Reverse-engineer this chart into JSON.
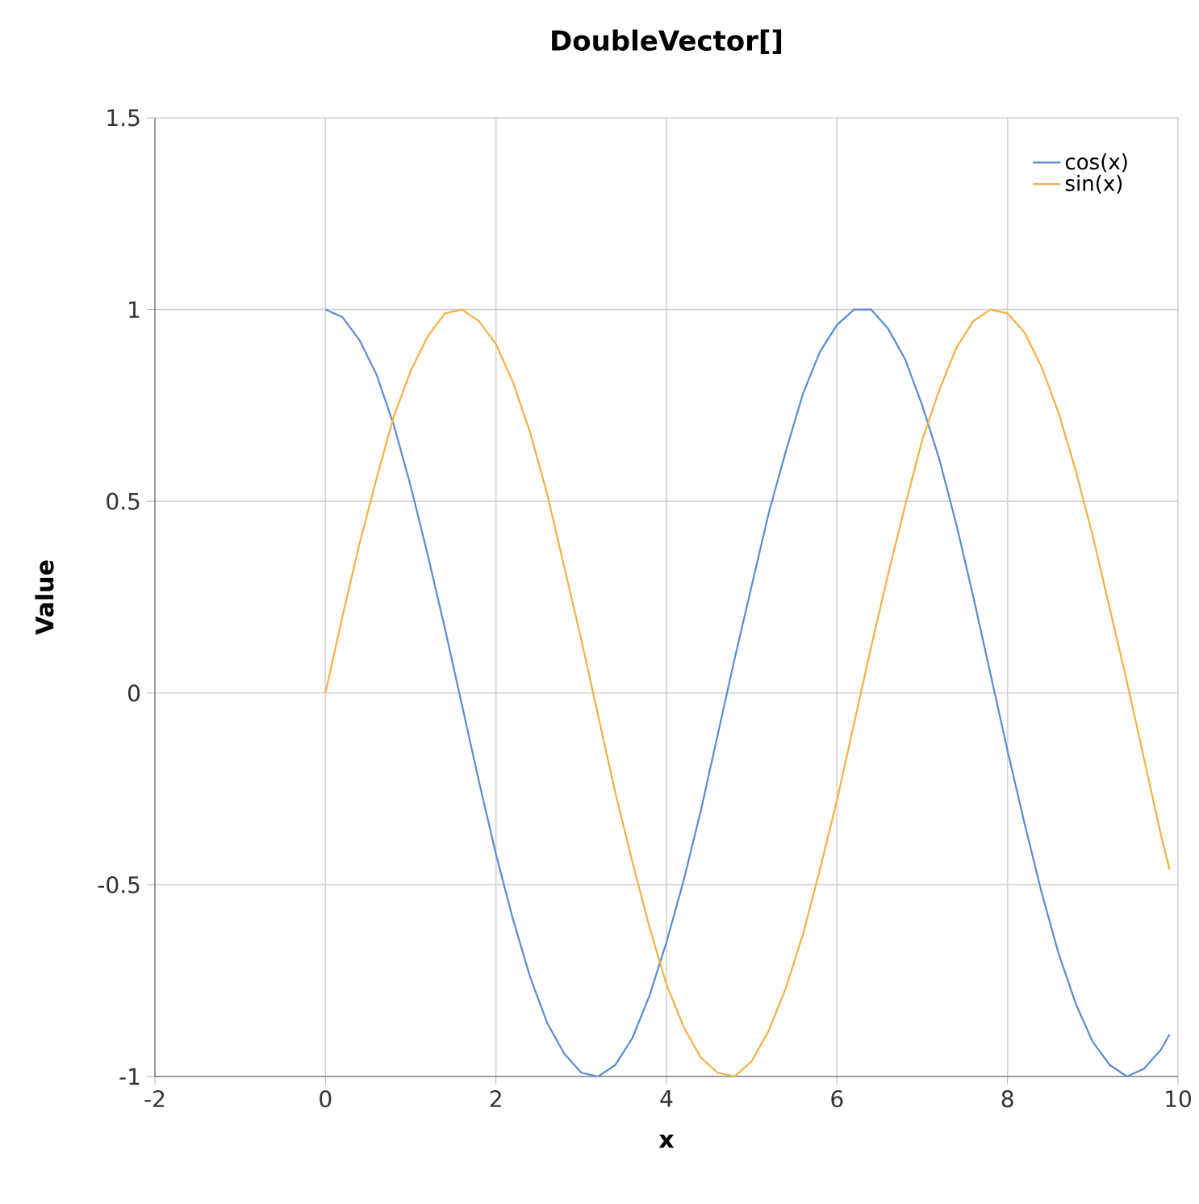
{
  "chart_data": {
    "type": "line",
    "title": "DoubleVector[]",
    "xlabel": "x",
    "ylabel": "Value",
    "x": [
      0,
      0.2,
      0.4,
      0.6,
      0.8,
      1.0,
      1.2,
      1.4,
      1.6,
      1.8,
      2.0,
      2.2,
      2.4,
      2.6,
      2.8,
      3.0,
      3.2,
      3.4,
      3.6,
      3.8,
      4.0,
      4.2,
      4.4,
      4.6,
      4.8,
      5.0,
      5.2,
      5.4,
      5.6,
      5.8,
      6.0,
      6.2,
      6.4,
      6.6,
      6.8,
      7.0,
      7.2,
      7.4,
      7.6,
      7.8,
      8.0,
      8.2,
      8.4,
      8.6,
      8.8,
      9.0,
      9.2,
      9.4,
      9.6,
      9.8,
      9.9
    ],
    "series": [
      {
        "name": "cos(x)",
        "color": "#5b8bd0",
        "values": [
          1,
          0.98,
          0.92,
          0.83,
          0.7,
          0.54,
          0.36,
          0.17,
          -0.03,
          -0.23,
          -0.42,
          -0.59,
          -0.74,
          -0.86,
          -0.94,
          -0.99,
          -1.0,
          -0.97,
          -0.9,
          -0.79,
          -0.65,
          -0.49,
          -0.31,
          -0.11,
          0.09,
          0.28,
          0.47,
          0.63,
          0.78,
          0.89,
          0.96,
          1.0,
          1.0,
          0.95,
          0.87,
          0.75,
          0.61,
          0.44,
          0.25,
          0.05,
          -0.15,
          -0.34,
          -0.52,
          -0.68,
          -0.81,
          -0.91,
          -0.97,
          -1.0,
          -0.98,
          -0.93,
          -0.89
        ]
      },
      {
        "name": "sin(x)",
        "color": "#f5b041",
        "values": [
          0,
          0.2,
          0.39,
          0.56,
          0.72,
          0.84,
          0.93,
          0.99,
          1.0,
          0.97,
          0.91,
          0.81,
          0.68,
          0.52,
          0.33,
          0.14,
          -0.06,
          -0.26,
          -0.44,
          -0.61,
          -0.76,
          -0.87,
          -0.95,
          -0.99,
          -1.0,
          -0.96,
          -0.88,
          -0.77,
          -0.63,
          -0.46,
          -0.28,
          -0.08,
          0.12,
          0.31,
          0.49,
          0.66,
          0.79,
          0.9,
          0.97,
          1.0,
          0.99,
          0.94,
          0.85,
          0.73,
          0.58,
          0.41,
          0.22,
          0.03,
          -0.17,
          -0.37,
          -0.46
        ]
      }
    ],
    "xlim": [
      -2,
      10
    ],
    "xticks": [
      -2,
      0,
      2,
      4,
      6,
      8,
      10
    ],
    "ylim": [
      -1,
      1.5
    ],
    "yticks": [
      -1,
      -0.5,
      0,
      0.5,
      1,
      1.5
    ],
    "grid": true,
    "legend": "top right"
  }
}
